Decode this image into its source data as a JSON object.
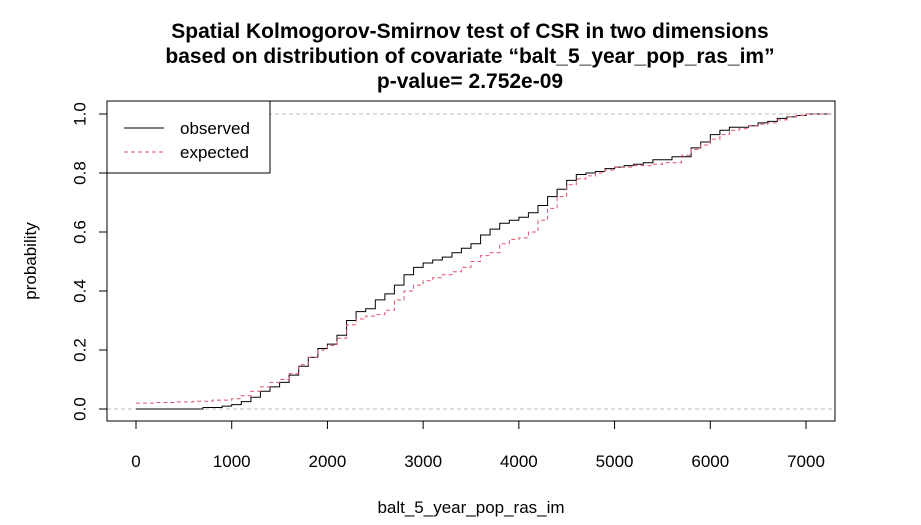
{
  "chart_data": {
    "type": "line",
    "title_lines": [
      "Spatial Kolmogorov-Smirnov test of CSR in two dimensions",
      "based on distribution of covariate “balt_5_year_pop_ras_im”",
      "p-value= 2.752e-09"
    ],
    "xlabel": "balt_5_year_pop_ras_im",
    "ylabel": "probability",
    "xlim": [
      0,
      7300
    ],
    "ylim": [
      0,
      1
    ],
    "x_ticks": [
      0,
      1000,
      2000,
      3000,
      4000,
      5000,
      6000,
      7000
    ],
    "y_ticks": [
      0.0,
      0.2,
      0.4,
      0.6,
      0.8,
      1.0
    ],
    "y_tick_labels": [
      "0.0",
      "0.2",
      "0.4",
      "0.6",
      "0.8",
      "1.0"
    ],
    "reference_lines": [
      0,
      1
    ],
    "legend": {
      "position": "top-left"
    },
    "series": [
      {
        "name": "observed",
        "style": "solid",
        "color": "#000000",
        "points": [
          [
            0,
            0
          ],
          [
            650,
            0
          ],
          [
            700,
            0.005
          ],
          [
            900,
            0.01
          ],
          [
            1000,
            0.015
          ],
          [
            1100,
            0.025
          ],
          [
            1200,
            0.04
          ],
          [
            1300,
            0.06
          ],
          [
            1400,
            0.075
          ],
          [
            1500,
            0.09
          ],
          [
            1600,
            0.115
          ],
          [
            1700,
            0.145
          ],
          [
            1800,
            0.175
          ],
          [
            1900,
            0.205
          ],
          [
            2000,
            0.22
          ],
          [
            2100,
            0.25
          ],
          [
            2200,
            0.3
          ],
          [
            2300,
            0.33
          ],
          [
            2400,
            0.34
          ],
          [
            2500,
            0.37
          ],
          [
            2600,
            0.39
          ],
          [
            2700,
            0.42
          ],
          [
            2800,
            0.455
          ],
          [
            2900,
            0.48
          ],
          [
            3000,
            0.495
          ],
          [
            3100,
            0.505
          ],
          [
            3200,
            0.515
          ],
          [
            3300,
            0.53
          ],
          [
            3400,
            0.545
          ],
          [
            3500,
            0.56
          ],
          [
            3600,
            0.59
          ],
          [
            3700,
            0.61
          ],
          [
            3800,
            0.63
          ],
          [
            3900,
            0.64
          ],
          [
            4000,
            0.65
          ],
          [
            4100,
            0.665
          ],
          [
            4200,
            0.69
          ],
          [
            4300,
            0.72
          ],
          [
            4400,
            0.745
          ],
          [
            4500,
            0.775
          ],
          [
            4600,
            0.795
          ],
          [
            4700,
            0.8
          ],
          [
            4800,
            0.805
          ],
          [
            4900,
            0.815
          ],
          [
            5000,
            0.82
          ],
          [
            5100,
            0.825
          ],
          [
            5200,
            0.83
          ],
          [
            5300,
            0.835
          ],
          [
            5400,
            0.845
          ],
          [
            5600,
            0.855
          ],
          [
            5800,
            0.885
          ],
          [
            5900,
            0.905
          ],
          [
            6000,
            0.93
          ],
          [
            6100,
            0.945
          ],
          [
            6200,
            0.955
          ],
          [
            6400,
            0.96
          ],
          [
            6500,
            0.97
          ],
          [
            6600,
            0.975
          ],
          [
            6700,
            0.985
          ],
          [
            6800,
            0.99
          ],
          [
            6900,
            0.995
          ],
          [
            7000,
            1.0
          ],
          [
            7250,
            1.0
          ]
        ]
      },
      {
        "name": "expected",
        "style": "dashed",
        "color": "#df536b",
        "points": [
          [
            0,
            0.02
          ],
          [
            200,
            0.022
          ],
          [
            400,
            0.024
          ],
          [
            600,
            0.026
          ],
          [
            800,
            0.03
          ],
          [
            1000,
            0.035
          ],
          [
            1100,
            0.045
          ],
          [
            1200,
            0.06
          ],
          [
            1300,
            0.075
          ],
          [
            1400,
            0.09
          ],
          [
            1500,
            0.1
          ],
          [
            1600,
            0.12
          ],
          [
            1700,
            0.15
          ],
          [
            1800,
            0.175
          ],
          [
            1900,
            0.2
          ],
          [
            2000,
            0.215
          ],
          [
            2100,
            0.24
          ],
          [
            2200,
            0.285
          ],
          [
            2300,
            0.305
          ],
          [
            2400,
            0.315
          ],
          [
            2500,
            0.32
          ],
          [
            2600,
            0.335
          ],
          [
            2700,
            0.37
          ],
          [
            2800,
            0.4
          ],
          [
            2900,
            0.42
          ],
          [
            3000,
            0.435
          ],
          [
            3100,
            0.445
          ],
          [
            3200,
            0.455
          ],
          [
            3300,
            0.465
          ],
          [
            3400,
            0.48
          ],
          [
            3500,
            0.5
          ],
          [
            3600,
            0.52
          ],
          [
            3700,
            0.53
          ],
          [
            3800,
            0.56
          ],
          [
            3900,
            0.575
          ],
          [
            4000,
            0.58
          ],
          [
            4100,
            0.6
          ],
          [
            4200,
            0.64
          ],
          [
            4300,
            0.68
          ],
          [
            4400,
            0.72
          ],
          [
            4500,
            0.76
          ],
          [
            4600,
            0.78
          ],
          [
            4700,
            0.79
          ],
          [
            4800,
            0.8
          ],
          [
            4900,
            0.81
          ],
          [
            5000,
            0.82
          ],
          [
            5200,
            0.825
          ],
          [
            5400,
            0.83
          ],
          [
            5500,
            0.835
          ],
          [
            5700,
            0.86
          ],
          [
            5800,
            0.88
          ],
          [
            5900,
            0.895
          ],
          [
            6000,
            0.915
          ],
          [
            6100,
            0.93
          ],
          [
            6200,
            0.945
          ],
          [
            6300,
            0.95
          ],
          [
            6400,
            0.96
          ],
          [
            6500,
            0.965
          ],
          [
            6600,
            0.97
          ],
          [
            6700,
            0.98
          ],
          [
            6800,
            0.99
          ],
          [
            6900,
            0.995
          ],
          [
            7000,
            1.0
          ],
          [
            7250,
            1.0
          ]
        ]
      }
    ]
  }
}
